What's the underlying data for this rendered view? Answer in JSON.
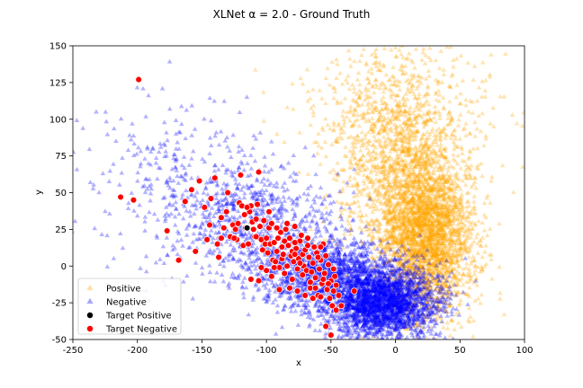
{
  "chart_data": {
    "type": "scatter",
    "title": "XLNet α = 2.0 - Ground Truth",
    "xlabel": "x",
    "ylabel": "y",
    "xlim": [
      -250,
      100
    ],
    "ylim": [
      -50,
      150
    ],
    "x_ticks": [
      -250,
      -200,
      -150,
      -100,
      -50,
      0,
      50,
      100
    ],
    "y_ticks": [
      -50,
      -25,
      0,
      25,
      50,
      75,
      100,
      125,
      150
    ],
    "grid": false,
    "legend_placement": "lower-left",
    "series": [
      {
        "name": "Positive",
        "marker": "triangle",
        "color": "#ffa500",
        "alpha": 0.3,
        "clusters": [
          {
            "center": [
              25,
              20
            ],
            "spread": [
              18,
              28
            ],
            "n": 2600
          },
          {
            "center": [
              0,
              65
            ],
            "spread": [
              25,
              35
            ],
            "n": 1200
          },
          {
            "center": [
              -10,
              115
            ],
            "spread": [
              35,
              20
            ],
            "n": 250
          },
          {
            "center": [
              40,
              95
            ],
            "spread": [
              40,
              30
            ],
            "n": 150
          }
        ]
      },
      {
        "name": "Negative",
        "marker": "triangle",
        "color": "#0000ff",
        "alpha": 0.3,
        "clusters": [
          {
            "center": [
              -10,
              -25
            ],
            "spread": [
              22,
              12
            ],
            "n": 2500
          },
          {
            "center": [
              -55,
              -5
            ],
            "spread": [
              28,
              12
            ],
            "n": 1300
          },
          {
            "center": [
              -110,
              30
            ],
            "spread": [
              35,
              20
            ],
            "n": 700
          },
          {
            "center": [
              -170,
              60
            ],
            "spread": [
              40,
              28
            ],
            "n": 250
          }
        ]
      },
      {
        "name": "Target Positive",
        "marker": "circle",
        "color": "#000000",
        "points": [
          [
            -115,
            26
          ]
        ]
      },
      {
        "name": "Target Negative",
        "marker": "circle",
        "color": "#ff0000",
        "points": [
          [
            -199,
            127
          ],
          [
            -213,
            47
          ],
          [
            -203,
            45
          ],
          [
            -177,
            24
          ],
          [
            -168,
            4
          ],
          [
            -163,
            44
          ],
          [
            -158,
            52
          ],
          [
            -155,
            10
          ],
          [
            -152,
            58
          ],
          [
            -148,
            40
          ],
          [
            -146,
            18
          ],
          [
            -144,
            28
          ],
          [
            -143,
            46
          ],
          [
            -140,
            60
          ],
          [
            -138,
            15
          ],
          [
            -137,
            6
          ],
          [
            -135,
            19
          ],
          [
            -133,
            26
          ],
          [
            -131,
            37
          ],
          [
            -130,
            50
          ],
          [
            -128,
            20
          ],
          [
            -126,
            28
          ],
          [
            -124,
            25
          ],
          [
            -123,
            18
          ],
          [
            -122,
            29
          ],
          [
            -121,
            43
          ],
          [
            -120,
            62
          ],
          [
            -119,
            41
          ],
          [
            -118,
            14
          ],
          [
            -117,
            35
          ],
          [
            -116,
            26
          ],
          [
            -114,
            15
          ],
          [
            -113,
            37
          ],
          [
            -112,
            41
          ],
          [
            -111,
            30
          ],
          [
            -110,
            25
          ],
          [
            -109,
            20
          ],
          [
            -108,
            32
          ],
          [
            -107,
            42
          ],
          [
            -106,
            64
          ],
          [
            -105,
            27
          ],
          [
            -104,
            18
          ],
          [
            -103,
            11
          ],
          [
            -102,
            31
          ],
          [
            -101,
            15
          ],
          [
            -100,
            19
          ],
          [
            -99,
            9
          ],
          [
            -98,
            26
          ],
          [
            -97,
            15
          ],
          [
            -96,
            29
          ],
          [
            -95,
            4
          ],
          [
            -94,
            16
          ],
          [
            -93,
            3
          ],
          [
            -92,
            10
          ],
          [
            -91,
            19
          ],
          [
            -90,
            -1
          ],
          [
            -89,
            23
          ],
          [
            -88,
            5
          ],
          [
            -87,
            8
          ],
          [
            -86,
            17
          ],
          [
            -85,
            25
          ],
          [
            -84,
            0
          ],
          [
            -83,
            14
          ],
          [
            -82,
            19
          ],
          [
            -81,
            7
          ],
          [
            -80,
            10
          ],
          [
            -79,
            3
          ],
          [
            -78,
            27
          ],
          [
            -77,
            12
          ],
          [
            -76,
            -2
          ],
          [
            -75,
            5
          ],
          [
            -74,
            17
          ],
          [
            -73,
            21
          ],
          [
            -72,
            8
          ],
          [
            -71,
            0
          ],
          [
            -70,
            11
          ],
          [
            -69,
            -3
          ],
          [
            -68,
            14
          ],
          [
            -67,
            6
          ],
          [
            -66,
            -15
          ],
          [
            -65,
            -4
          ],
          [
            -64,
            2
          ],
          [
            -63,
            13
          ],
          [
            -62,
            -8
          ],
          [
            -61,
            9
          ],
          [
            -60,
            -20
          ],
          [
            -59,
            -2
          ],
          [
            -58,
            4
          ],
          [
            -57,
            -12
          ],
          [
            -56,
            15
          ],
          [
            -55,
            -5
          ],
          [
            -54,
            7
          ],
          [
            -53,
            -16
          ],
          [
            -52,
            1
          ],
          [
            -51,
            -22
          ],
          [
            -50,
            -10
          ],
          [
            -49,
            -27
          ],
          [
            -48,
            -2
          ],
          [
            -47,
            -7
          ],
          [
            -46,
            -30
          ],
          [
            -106,
            -10
          ],
          [
            -112,
            -9
          ],
          [
            -100,
            -3
          ],
          [
            -96,
            -7
          ],
          [
            -90,
            -16
          ],
          [
            -82,
            -15
          ],
          [
            -76,
            -17
          ],
          [
            -70,
            -20
          ],
          [
            -64,
            -22
          ],
          [
            -58,
            -21
          ],
          [
            -54,
            -41
          ],
          [
            -50,
            -47
          ],
          [
            -42,
            -27
          ],
          [
            -32,
            -17
          ],
          [
            -80,
            -9
          ],
          [
            -94,
            -1
          ],
          [
            -104,
            -1
          ],
          [
            -86,
            -5
          ],
          [
            -66,
            -11
          ],
          [
            -62,
            -15
          ],
          [
            -135,
            33
          ],
          [
            -125,
            19
          ],
          [
            -115,
            40
          ],
          [
            -108,
            20
          ],
          [
            -98,
            37
          ],
          [
            -92,
            26
          ],
          [
            -88,
            13
          ],
          [
            -84,
            29
          ],
          [
            -78,
            16
          ],
          [
            -74,
            2
          ],
          [
            -68,
            19
          ],
          [
            -60,
            6
          ],
          [
            -56,
            -9
          ],
          [
            -52,
            -12
          ],
          [
            -48,
            -17
          ],
          [
            -46,
            -13
          ],
          [
            -44,
            -20
          ],
          [
            -58,
            13
          ],
          [
            -72,
            -6
          ],
          [
            -78,
            8
          ]
        ]
      }
    ]
  }
}
